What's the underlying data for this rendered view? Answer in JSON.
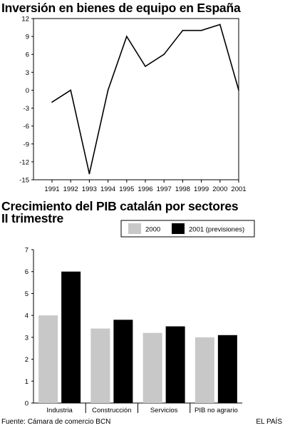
{
  "chart_data": [
    {
      "type": "line",
      "title": "Inversión en bienes de equipo en España",
      "x": [
        "1991",
        "1992",
        "1993",
        "1994",
        "1995",
        "1996",
        "1997",
        "1998",
        "1999",
        "2000",
        "2001"
      ],
      "series": [
        {
          "values": [
            -2,
            0,
            -14,
            0,
            9,
            4,
            6,
            10,
            10,
            11,
            0
          ]
        }
      ],
      "y_ticks": [
        12,
        9,
        6,
        3,
        0,
        -3,
        -6,
        -9,
        -12,
        -15
      ],
      "ylim": [
        -15,
        12
      ],
      "grid": false,
      "colors": {
        "line": "#000000"
      }
    },
    {
      "type": "bar",
      "title": "Crecimiento del PIB catalán por sectores",
      "subtitle": "II trimestre",
      "categories": [
        "Industria",
        "Construcción",
        "Servicios",
        "PIB no agrario"
      ],
      "series": [
        {
          "name": "2000",
          "values": [
            4.0,
            3.4,
            3.2,
            3.0
          ],
          "color": "#c8c8c8"
        },
        {
          "name": "2001 (previsiones)",
          "values": [
            6.0,
            3.8,
            3.5,
            3.1
          ],
          "color": "#000000"
        }
      ],
      "y_ticks": [
        0,
        1,
        2,
        3,
        4,
        5,
        6,
        7
      ],
      "ylim": [
        0,
        7
      ],
      "legend": "top-right",
      "grid": false
    }
  ],
  "footer": {
    "source": "Fuente: Cámara de comercio BCN",
    "brand": "EL PAÍS"
  }
}
